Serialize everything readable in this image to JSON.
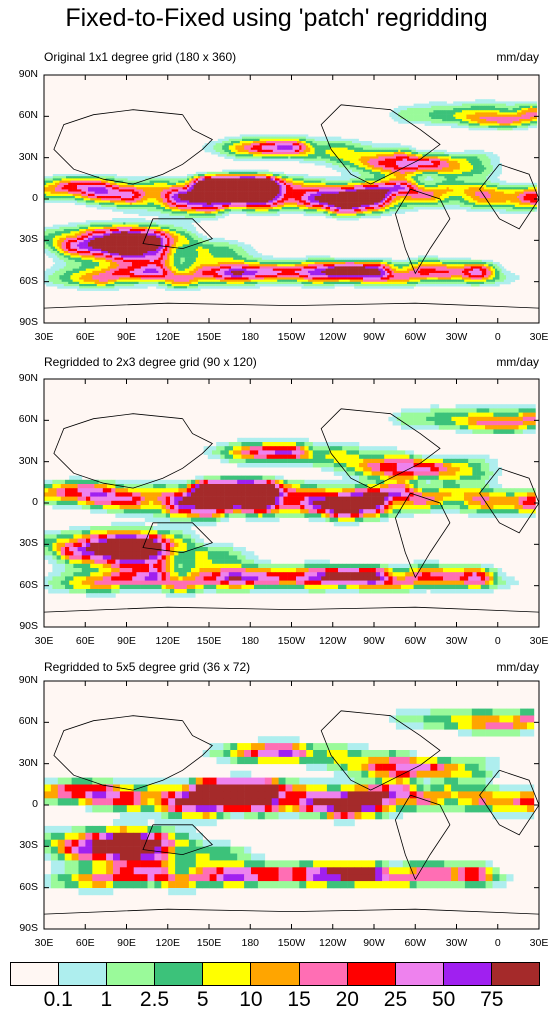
{
  "title": "Fixed-to-Fixed using 'patch' regridding",
  "units": "mm/day",
  "panels": [
    {
      "subtitle": "Original 1x1 degree grid (180 x 360)",
      "cell": 1
    },
    {
      "subtitle": "Regridded to 2x3 degree grid (90 x 120)",
      "cell": 2
    },
    {
      "subtitle": "Regridded to 5x5 degree grid (36 x 72)",
      "cell": 3
    }
  ],
  "lat_labels": [
    "90N",
    "60N",
    "30N",
    "0",
    "30S",
    "60S",
    "90S"
  ],
  "lon_labels": [
    "30E",
    "60E",
    "90E",
    "120E",
    "150E",
    "180",
    "150W",
    "120W",
    "90W",
    "60W",
    "30W",
    "0",
    "30E"
  ],
  "colorbar": {
    "colors": [
      "#fff7f3",
      "#aeeeee",
      "#9afa9a",
      "#3cc27a",
      "#ffff00",
      "#ffa500",
      "#ff6eb4",
      "#ff0000",
      "#ee82ee",
      "#a020f0",
      "#a52a2a"
    ],
    "labels": [
      "0.1",
      "1",
      "2.5",
      "5",
      "10",
      "15",
      "20",
      "25",
      "50",
      "75"
    ]
  }
}
